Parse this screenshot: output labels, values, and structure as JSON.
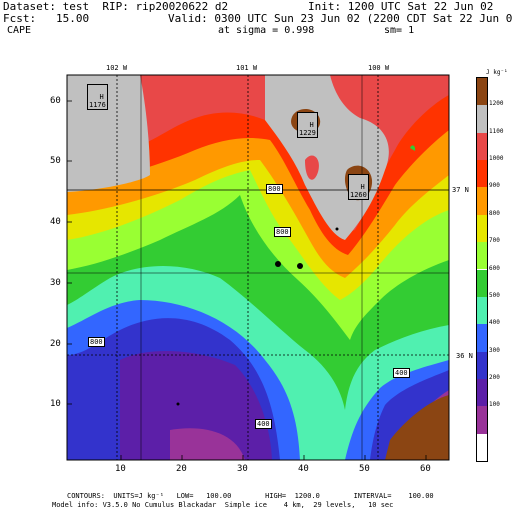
{
  "header": {
    "dataset": "Dataset: test  RIP: rip20020622 d2",
    "init": "Init: 1200 UTC Sat 22 Jun 02",
    "fcst": "Fcst:   15.00",
    "valid": "Valid: 0300 UTC Sun 23 Jun 02 (2200 CDT Sat 22 Jun 02)",
    "field": "CAPE",
    "sigma": "at sigma = 0.998",
    "smooth": "sm= 1"
  },
  "map": {
    "lon_labels": [
      "102 W",
      "101 W",
      "100 W"
    ],
    "lat_labels": [
      "37 N",
      "36 N"
    ],
    "x_ticks": [
      "10",
      "20",
      "30",
      "40",
      "50",
      "60"
    ],
    "y_ticks": [
      "10",
      "20",
      "30",
      "40",
      "50",
      "60"
    ],
    "highs": [
      {
        "label": "H",
        "value": "1176"
      },
      {
        "label": "H",
        "value": "1229"
      },
      {
        "label": "H",
        "value": "1260"
      }
    ],
    "contour_labels": [
      "800",
      "800",
      "800",
      "400",
      "400"
    ]
  },
  "legend": {
    "units": "J kg⁻¹",
    "levels": [
      "1200",
      "1100",
      "1000",
      "900",
      "800",
      "700",
      "600",
      "500",
      "400",
      "300",
      "200",
      "100"
    ],
    "colors": [
      "#8b4513",
      "#c0c0c0",
      "#e84848",
      "#ff3300",
      "#ff9900",
      "#e6e600",
      "#99ff33",
      "#33cc33",
      "#50f0b0",
      "#3366ff",
      "#3333cc",
      "#5c1fa8",
      "#993399",
      "#ffffff"
    ]
  },
  "footer": {
    "contours": "CONTOURS:  UNITS=J kg⁻¹   LOW=   100.00        HIGH=  1200.0        INTERVAL=    100.00",
    "model": "Model info: V3.5.0 No Cumulus Blackadar  Simple ice    4 km,  29 levels,   10 sec"
  }
}
